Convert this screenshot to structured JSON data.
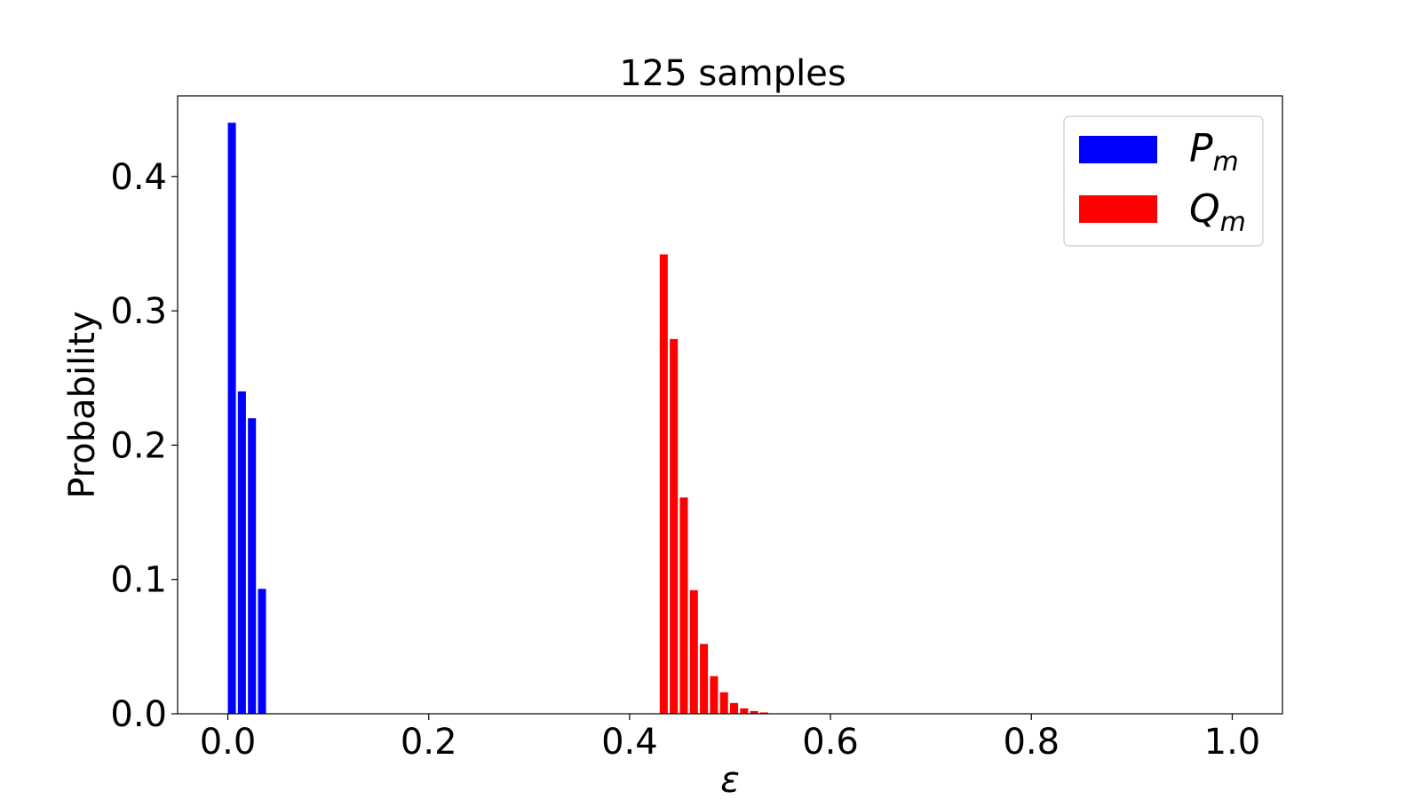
{
  "chart_data": {
    "type": "bar",
    "title": "125 samples",
    "xlabel": "ε",
    "ylabel": "Probability",
    "xlim": [
      -0.05,
      1.05
    ],
    "ylim": [
      0,
      0.46
    ],
    "xticks": [
      {
        "value": 0.0,
        "label": "0.0"
      },
      {
        "value": 0.2,
        "label": "0.2"
      },
      {
        "value": 0.4,
        "label": "0.4"
      },
      {
        "value": 0.6,
        "label": "0.6"
      },
      {
        "value": 0.8,
        "label": "0.8"
      },
      {
        "value": 1.0,
        "label": "1.0"
      }
    ],
    "yticks": [
      {
        "value": 0.0,
        "label": "0.0"
      },
      {
        "value": 0.1,
        "label": "0.1"
      },
      {
        "value": 0.2,
        "label": "0.2"
      },
      {
        "value": 0.3,
        "label": "0.3"
      },
      {
        "value": 0.4,
        "label": "0.4"
      }
    ],
    "bar_width": 0.008,
    "grid": false,
    "legend_position": "top-right",
    "series": [
      {
        "name": "P_m",
        "legend_main": "P",
        "legend_sub": "m",
        "color": "#0000ff",
        "x": [
          0.004,
          0.014,
          0.024,
          0.034
        ],
        "values": [
          0.44,
          0.24,
          0.22,
          0.093
        ]
      },
      {
        "name": "Q_m",
        "legend_main": "Q",
        "legend_sub": "m",
        "color": "#ff0000",
        "x": [
          0.434,
          0.444,
          0.454,
          0.464,
          0.474,
          0.484,
          0.494,
          0.504,
          0.514,
          0.524,
          0.534
        ],
        "values": [
          0.342,
          0.279,
          0.161,
          0.092,
          0.052,
          0.028,
          0.016,
          0.008,
          0.004,
          0.002,
          0.001
        ]
      }
    ]
  }
}
